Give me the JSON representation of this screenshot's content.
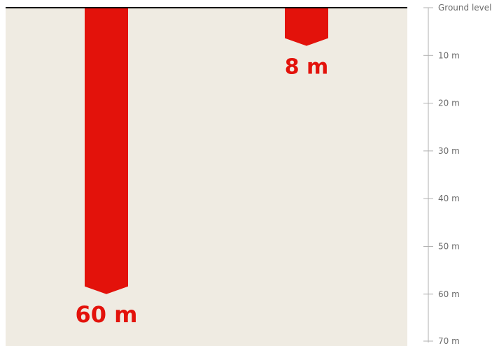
{
  "chart_data": {
    "type": "bar",
    "orientation": "downward",
    "title": "",
    "xlabel": "",
    "ylabel": "",
    "categories": [
      "",
      ""
    ],
    "values": [
      60,
      8
    ],
    "unit": "m",
    "labels": [
      "60 m",
      "8 m"
    ],
    "ylim": [
      0,
      70
    ],
    "y_ticks": [
      {
        "value": 0,
        "label": "Ground level"
      },
      {
        "value": 10,
        "label": "10 m"
      },
      {
        "value": 20,
        "label": "20 m"
      },
      {
        "value": 30,
        "label": "30 m"
      },
      {
        "value": 40,
        "label": "40 m"
      },
      {
        "value": 50,
        "label": "50 m"
      },
      {
        "value": 60,
        "label": "60 m"
      },
      {
        "value": 70,
        "label": "70 m"
      }
    ],
    "axis_position": "right",
    "grid": false,
    "colors": {
      "bar": "#e3120b",
      "background": "#efebe2",
      "ground_line": "#000000",
      "axis": "#b0b0b0",
      "tick_text": "#6b6b6b"
    }
  }
}
